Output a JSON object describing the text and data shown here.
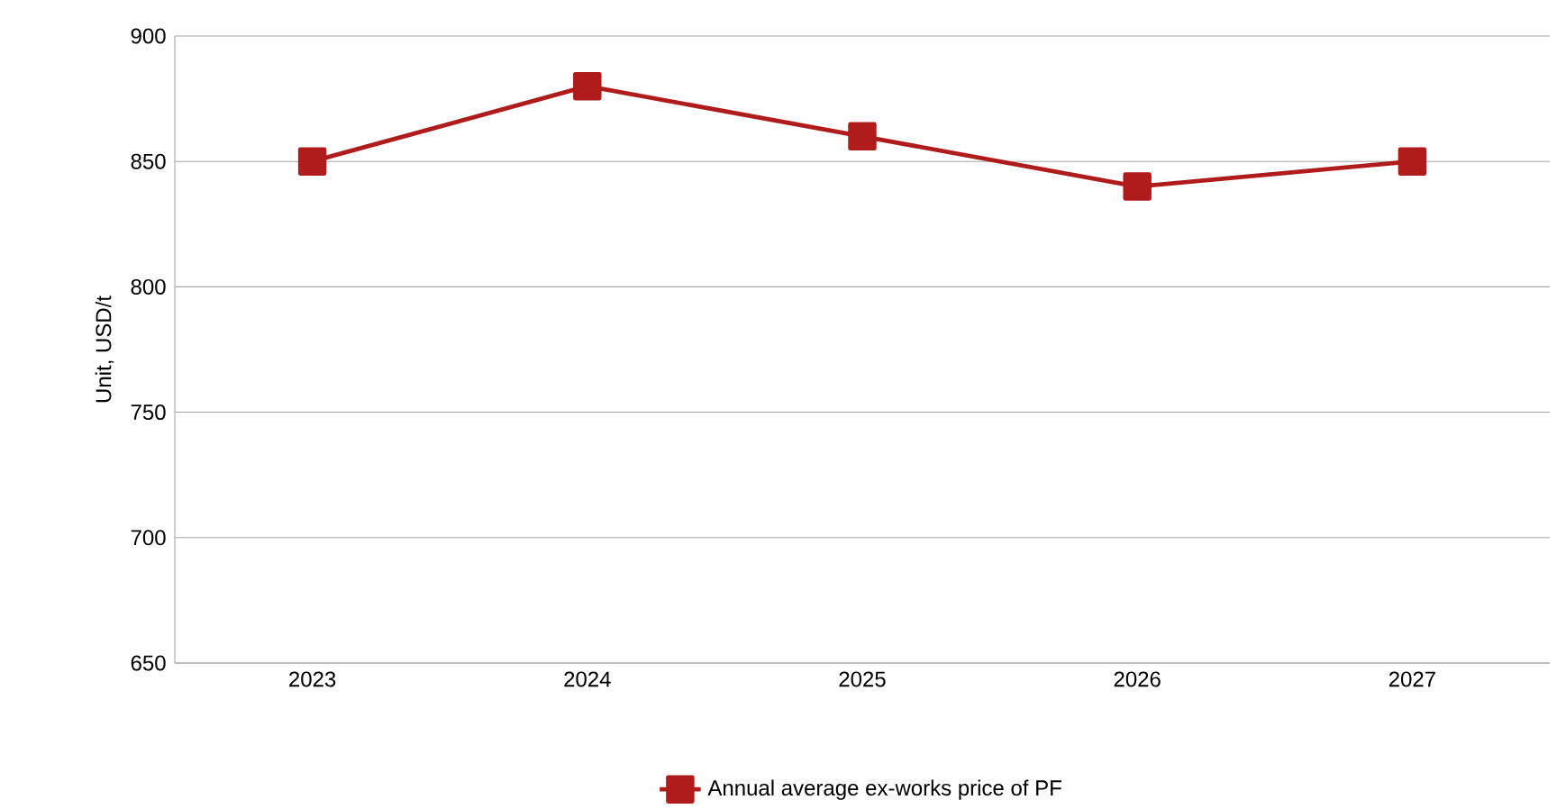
{
  "chart_data": {
    "type": "line",
    "ylabel": "Unit, USD/t",
    "categories": [
      "2023",
      "2024",
      "2025",
      "2026",
      "2027"
    ],
    "series": [
      {
        "name": "Annual average ex-works price of PF",
        "color": "#b01c1c",
        "values": [
          850,
          880,
          860,
          840,
          850
        ]
      }
    ],
    "ylim": [
      650,
      900
    ],
    "yticks": [
      650,
      700,
      750,
      800,
      850,
      900
    ],
    "grid": "y",
    "legend": "bottom",
    "marker": "square",
    "line_style": "solid"
  }
}
